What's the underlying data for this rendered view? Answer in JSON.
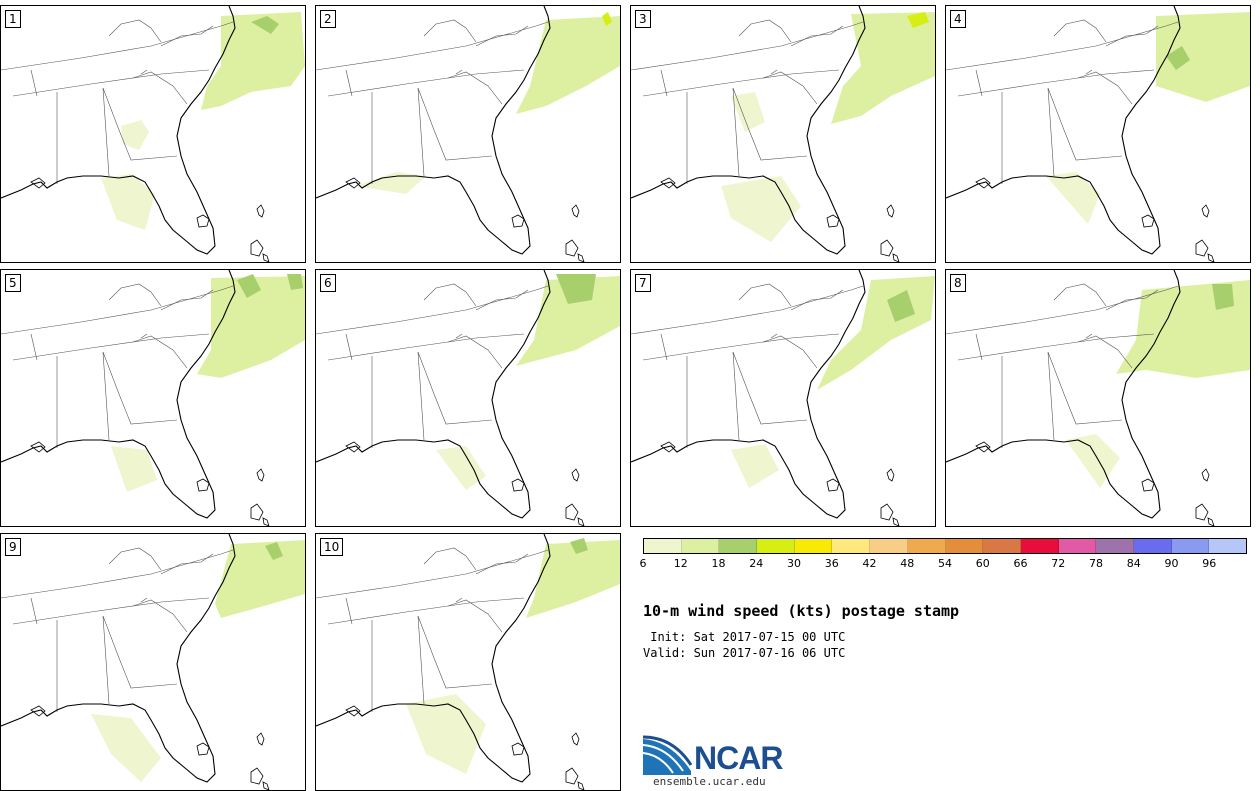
{
  "members": [
    "1",
    "2",
    "3",
    "4",
    "5",
    "6",
    "7",
    "8",
    "9",
    "10"
  ],
  "legend": {
    "ticks": [
      "6",
      "12",
      "18",
      "24",
      "30",
      "36",
      "42",
      "48",
      "54",
      "60",
      "66",
      "72",
      "78",
      "84",
      "90",
      "96"
    ],
    "colors": [
      "#eef5cf",
      "#ddf0a2",
      "#a7cf6c",
      "#d6ee14",
      "#f8ea05",
      "#ffe97e",
      "#f8cd84",
      "#eeaa4c",
      "#e48d3a",
      "#d97844",
      "#e70d3c",
      "#e05aa6",
      "#9e73ab",
      "#6a6cf0",
      "#8a9af0",
      "#b6c6f8"
    ]
  },
  "title": "10-m wind speed (kts) postage stamp",
  "init_line": " Init: Sat 2017-07-15 00 UTC",
  "valid_line": "Valid: Sun 2017-07-16 06 UTC",
  "logo": {
    "word": "NCAR",
    "url": "ensemble.ucar.edu"
  }
}
